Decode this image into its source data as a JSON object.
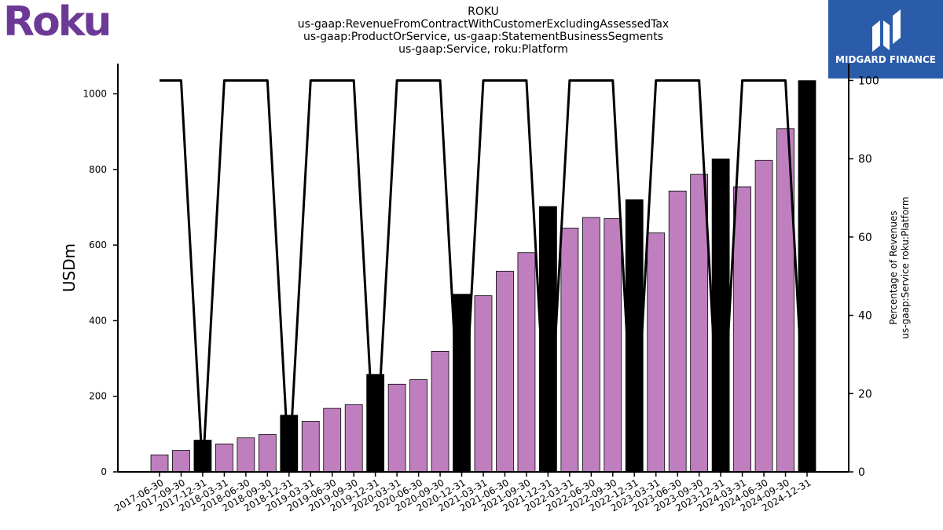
{
  "logos": {
    "company": "Roku",
    "publisher": "MIDGARD FINANCE"
  },
  "colors": {
    "bar_regular": "#bf7fbf",
    "bar_highlight": "#000000",
    "line": "#000000",
    "roku_purple": "#6c3a96",
    "midgard_blue": "#2a5caa"
  },
  "chart_data": {
    "type": "bar",
    "title_lines": [
      "ROKU",
      "us-gaap:RevenueFromContractWithCustomerExcludingAssessedTax",
      "us-gaap:ProductOrService, us-gaap:StatementBusinessSegments",
      "us-gaap:Service, roku:Platform"
    ],
    "ylabel": "USDm",
    "y2label_lines": [
      "Percentage of Revenues",
      "us-gaap:Service roku:Platform"
    ],
    "ylim": [
      0,
      1080
    ],
    "y2lim": [
      0,
      104.3
    ],
    "yticks": [
      0,
      200,
      400,
      600,
      800,
      1000
    ],
    "y2ticks": [
      0,
      20,
      40,
      60,
      80,
      100
    ],
    "categories": [
      "2017-06-30",
      "2017-09-30",
      "2017-12-31",
      "2018-03-31",
      "2018-06-30",
      "2018-09-30",
      "2018-12-31",
      "2019-03-31",
      "2019-06-30",
      "2019-09-30",
      "2019-12-31",
      "2020-03-31",
      "2020-06-30",
      "2020-09-30",
      "2020-12-31",
      "2021-03-31",
      "2021-06-30",
      "2021-09-30",
      "2021-12-31",
      "2022-03-31",
      "2022-06-30",
      "2022-09-30",
      "2022-12-31",
      "2023-03-31",
      "2023-06-30",
      "2023-09-30",
      "2023-12-31",
      "2024-03-31",
      "2024-06-30",
      "2024-09-30",
      "2024-12-31"
    ],
    "series": [
      {
        "type": "bar",
        "values": [
          45,
          57,
          84,
          74,
          90,
          99,
          150,
          134,
          168,
          178,
          258,
          232,
          244,
          319,
          470,
          466,
          531,
          580,
          702,
          645,
          673,
          670,
          720,
          632,
          743,
          787,
          828,
          754,
          824,
          908,
          1035
        ],
        "highlight": [
          false,
          false,
          true,
          false,
          false,
          false,
          true,
          false,
          false,
          false,
          true,
          false,
          false,
          false,
          true,
          false,
          false,
          false,
          true,
          false,
          false,
          false,
          true,
          false,
          false,
          false,
          true,
          false,
          false,
          false,
          true
        ]
      },
      {
        "type": "line",
        "axis": "right",
        "values": [
          100,
          100,
          0,
          100,
          100,
          100,
          0,
          100,
          100,
          100,
          0,
          100,
          100,
          100,
          0,
          100,
          100,
          100,
          0,
          100,
          100,
          100,
          0,
          100,
          100,
          100,
          0,
          100,
          100,
          100,
          0
        ]
      }
    ]
  }
}
